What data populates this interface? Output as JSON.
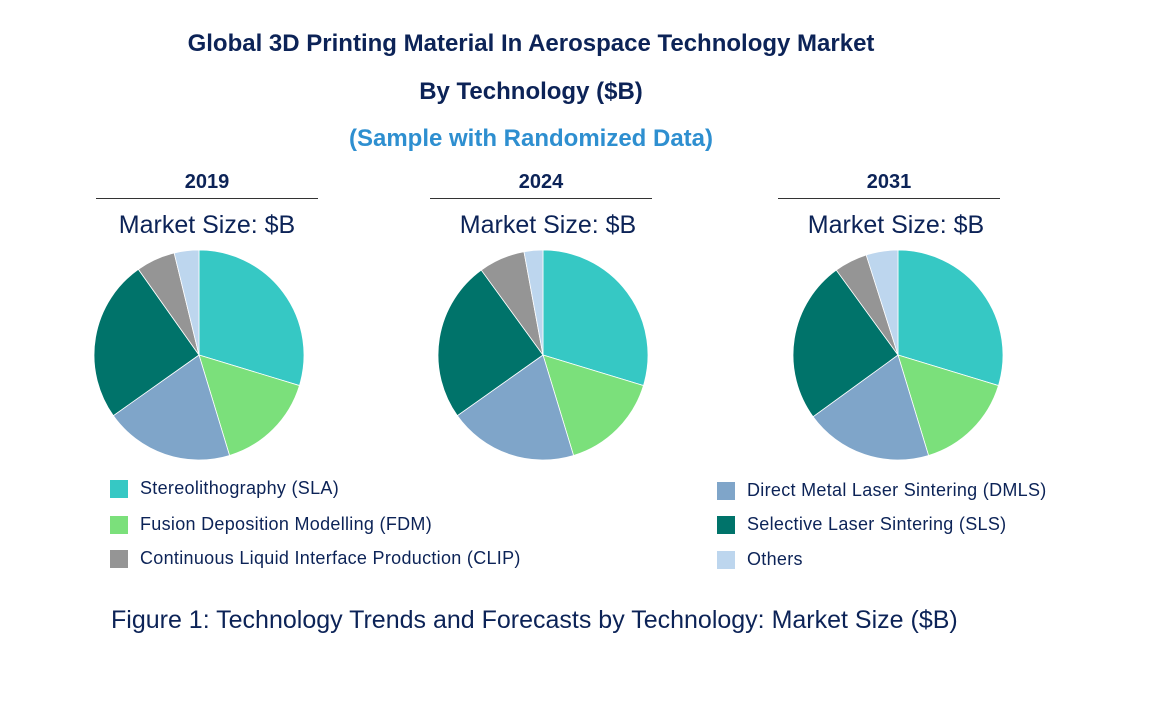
{
  "title_line1": "Global 3D Printing Material In Aerospace Technology Market",
  "title_line2": "By Technology ($B)",
  "subtitle": "(Sample with Randomized Data)",
  "caption": "Figure 1: Technology Trends and Forecasts by Technology: Market Size ($B)",
  "colors": {
    "title": "#0c2357",
    "subtitle": "#2e8fd0"
  },
  "chart_data": [
    {
      "type": "pie",
      "title": "2019",
      "subtitle": "Market Size: $B",
      "unit": "percent share",
      "categories": [
        "Stereolithography (SLA)",
        "Fusion Deposition Modelling (FDM)",
        "Direct Metal Laser Sintering (DMLS)",
        "Selective Laser Sintering (SLS)",
        "Continuous Liquid Interface Production (CLIP)",
        "Others"
      ],
      "values": [
        29.7,
        15.6,
        19.9,
        25.0,
        6.0,
        3.8
      ]
    },
    {
      "type": "pie",
      "title": "2024",
      "subtitle": "Market Size: $B",
      "unit": "percent share",
      "categories": [
        "Stereolithography (SLA)",
        "Fusion Deposition Modelling (FDM)",
        "Direct Metal Laser Sintering (DMLS)",
        "Selective Laser Sintering (SLS)",
        "Continuous Liquid Interface Production (CLIP)",
        "Others"
      ],
      "values": [
        29.7,
        15.6,
        19.9,
        24.8,
        7.1,
        2.9
      ]
    },
    {
      "type": "pie",
      "title": "2031",
      "subtitle": "Market Size: $B",
      "unit": "percent share",
      "categories": [
        "Stereolithography (SLA)",
        "Fusion Deposition Modelling (FDM)",
        "Direct Metal Laser Sintering (DMLS)",
        "Selective Laser Sintering (SLS)",
        "Continuous Liquid Interface Production (CLIP)",
        "Others"
      ],
      "values": [
        29.7,
        15.6,
        19.7,
        25.0,
        5.1,
        4.9
      ]
    }
  ],
  "slice_colors": [
    "#36c8c4",
    "#7be07b",
    "#7fa5c9",
    "#00736a",
    "#959595",
    "#bdd6ee"
  ],
  "legend_left": [
    {
      "label": "Stereolithography (SLA)",
      "color": "#36c8c4"
    },
    {
      "label": "Fusion Deposition Modelling (FDM)",
      "color": "#7be07b"
    },
    {
      "label": "Continuous Liquid Interface Production (CLIP)",
      "color": "#959595"
    }
  ],
  "legend_right": [
    {
      "label": "Direct Metal Laser Sintering (DMLS)",
      "color": "#7fa5c9"
    },
    {
      "label": "Selective Laser Sintering (SLS)",
      "color": "#00736a"
    },
    {
      "label": "Others",
      "color": "#bdd6ee"
    }
  ]
}
